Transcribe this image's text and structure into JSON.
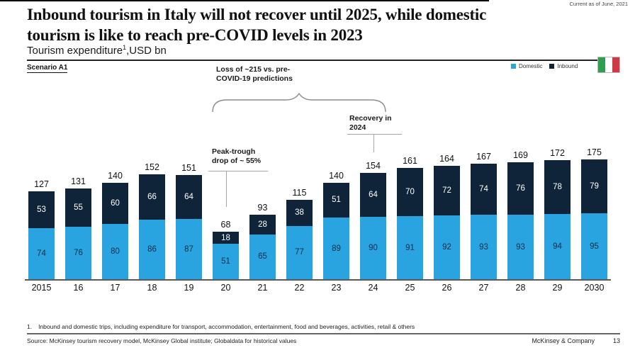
{
  "meta": {
    "current_as_of": "Current as of June, 2021"
  },
  "header": {
    "title_line1": "Inbound tourism in Italy will not recover until 2025, while domestic",
    "title_line2": "tourism is like to reach pre-COVID levels in 2023",
    "subtitle_text": "Tourism expenditure",
    "subtitle_superscript": "1",
    "subtitle_unit": ",USD bn",
    "scenario": "Scenario A1"
  },
  "legend": {
    "domestic_label": "Domestic",
    "inbound_label": "Inbound"
  },
  "annotations": {
    "loss_line1": "Loss of ~215 vs. pre-",
    "loss_line2": "COVID-19 predictions",
    "recovery_line1": "Recovery in",
    "recovery_line2": "2024",
    "peak_line1": "Peak-trough",
    "peak_line2": "drop of ~ 55%"
  },
  "colors": {
    "domestic": "#29A4E0",
    "inbound": "#0F2438",
    "domestic_value_text": "#0D2C47",
    "inbound_value_text": "#FFFFFF",
    "annotation_line": "#A6A6A6",
    "flag_green": "#2F9E4F",
    "flag_white": "#FFFFFF",
    "flag_red": "#CE3A45"
  },
  "chart_data": {
    "type": "bar",
    "stacked": true,
    "title": "Tourism expenditure, USD bn",
    "categories": [
      "2015",
      "16",
      "17",
      "18",
      "19",
      "20",
      "21",
      "22",
      "23",
      "24",
      "25",
      "26",
      "27",
      "28",
      "29",
      "2030"
    ],
    "series": [
      {
        "name": "Domestic",
        "values": [
          74,
          76,
          80,
          86,
          87,
          51,
          65,
          77,
          89,
          90,
          91,
          92,
          93,
          93,
          94,
          95
        ]
      },
      {
        "name": "Inbound",
        "values": [
          53,
          55,
          60,
          66,
          64,
          18,
          28,
          38,
          51,
          64,
          70,
          72,
          74,
          76,
          78,
          79
        ]
      }
    ],
    "totals": [
      127,
      131,
      140,
      152,
      151,
      68,
      93,
      115,
      140,
      154,
      161,
      164,
      167,
      169,
      172,
      175
    ],
    "ylim": [
      0,
      175
    ],
    "legend_position": "top-right",
    "grid": false
  },
  "footer": {
    "footnote_number": "1.",
    "footnote_text": "Inbound and domestic trips, including expenditure for transport, accommodation, entertainment, food and beverages, activities, retail & others",
    "source_text": "Source: McKinsey tourism recovery model, McKinsey Global institute; Globaldata for historical values",
    "company": "McKinsey & Company",
    "page_number": "13"
  }
}
